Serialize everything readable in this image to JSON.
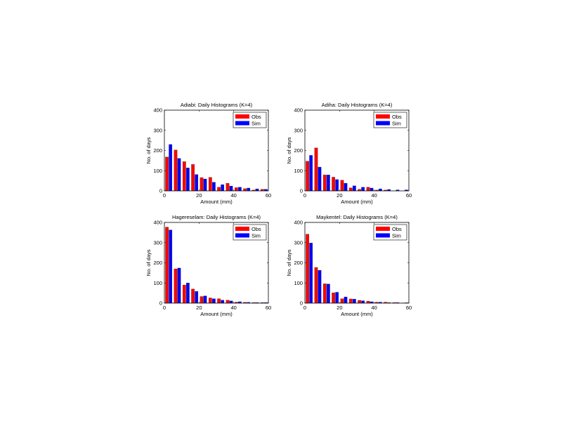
{
  "chart_data": [
    {
      "type": "bar",
      "title": "Adiabi: Daily Histograms (K=4)",
      "xlabel": "Amount (mm)",
      "ylabel": "No. of days",
      "xlim": [
        0,
        60
      ],
      "ylim": [
        0,
        400
      ],
      "xticks": [
        0,
        20,
        40,
        60
      ],
      "yticks": [
        0,
        100,
        200,
        300,
        400
      ],
      "legend_position": "top-right",
      "bin_centers": [
        2.5,
        7.5,
        12.5,
        17.5,
        22.5,
        27.5,
        32.5,
        37.5,
        42.5,
        47.5,
        52.5,
        57.5
      ],
      "series": [
        {
          "name": "Obs",
          "color": "#ff0000",
          "values": [
            168,
            203,
            145,
            131,
            66,
            67,
            18,
            38,
            16,
            11,
            4,
            8
          ]
        },
        {
          "name": "Sim",
          "color": "#0000ff",
          "values": [
            230,
            161,
            114,
            81,
            59,
            43,
            31,
            24,
            18,
            14,
            10,
            8
          ]
        }
      ]
    },
    {
      "type": "bar",
      "title": "Adiha: Daily Histograms (K=4)",
      "xlabel": "Amount (mm)",
      "ylabel": "No. of days",
      "xlim": [
        0,
        60
      ],
      "ylim": [
        0,
        400
      ],
      "xticks": [
        0,
        20,
        40,
        60
      ],
      "yticks": [
        0,
        100,
        200,
        300,
        400
      ],
      "legend_position": "top-right",
      "bin_centers": [
        2.5,
        7.5,
        12.5,
        17.5,
        22.5,
        27.5,
        32.5,
        37.5,
        42.5,
        47.5,
        52.5,
        57.5
      ],
      "series": [
        {
          "name": "Obs",
          "color": "#ff0000",
          "values": [
            147,
            213,
            79,
            68,
            53,
            15,
            8,
            18,
            4,
            4,
            0,
            0
          ]
        },
        {
          "name": "Sim",
          "color": "#0000ff",
          "values": [
            176,
            118,
            79,
            56,
            38,
            25,
            18,
            14,
            10,
            7,
            5,
            5
          ]
        }
      ]
    },
    {
      "type": "bar",
      "title": "Hagereselam: Daily Histograms (K=4)",
      "xlabel": "Amount (mm)",
      "ylabel": "No. of days",
      "xlim": [
        0,
        60
      ],
      "ylim": [
        0,
        400
      ],
      "xticks": [
        0,
        20,
        40,
        60
      ],
      "yticks": [
        0,
        100,
        200,
        300,
        400
      ],
      "legend_position": "top-right",
      "bin_centers": [
        2.5,
        7.5,
        12.5,
        17.5,
        22.5,
        27.5,
        32.5,
        37.5,
        42.5,
        47.5,
        52.5,
        57.5
      ],
      "series": [
        {
          "name": "Obs",
          "color": "#ff0000",
          "values": [
            377,
            170,
            90,
            70,
            33,
            26,
            22,
            15,
            5,
            4,
            3,
            3
          ]
        },
        {
          "name": "Sim",
          "color": "#0000ff",
          "values": [
            363,
            174,
            100,
            58,
            36,
            22,
            15,
            11,
            7,
            4,
            3,
            3
          ]
        }
      ]
    },
    {
      "type": "bar",
      "title": "Maykentel: Daily Histograms (K=4)",
      "xlabel": "Amount (mm)",
      "ylabel": "No. of days",
      "xlim": [
        0,
        60
      ],
      "ylim": [
        0,
        400
      ],
      "xticks": [
        0,
        20,
        40,
        60
      ],
      "yticks": [
        0,
        100,
        200,
        300,
        400
      ],
      "legend_position": "top-right",
      "bin_centers": [
        2.5,
        7.5,
        12.5,
        17.5,
        22.5,
        27.5,
        32.5,
        37.5,
        42.5,
        47.5,
        52.5,
        57.5
      ],
      "series": [
        {
          "name": "Obs",
          "color": "#ff0000",
          "values": [
            342,
            177,
            96,
            51,
            22,
            21,
            14,
            10,
            5,
            5,
            3,
            1
          ]
        },
        {
          "name": "Sim",
          "color": "#0000ff",
          "values": [
            298,
            163,
            95,
            54,
            31,
            20,
            12,
            7,
            5,
            3,
            3,
            2
          ]
        }
      ]
    }
  ]
}
